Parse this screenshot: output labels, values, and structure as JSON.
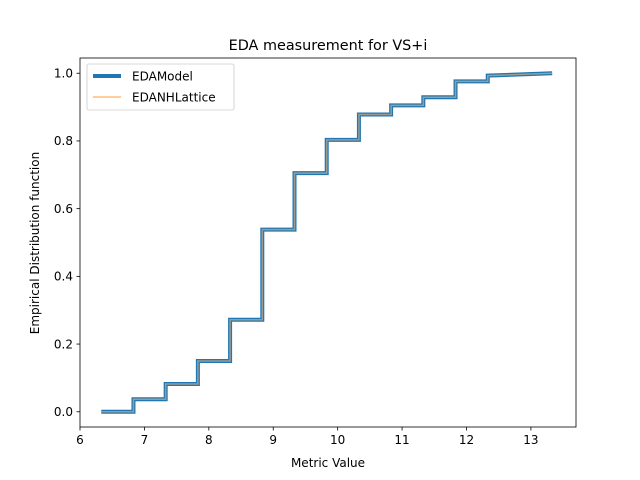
{
  "chart_data": {
    "type": "line",
    "title": "EDA measurement for VS+i",
    "xlabel": "Metric Value",
    "ylabel": "Empirical Distribution function",
    "xlim": [
      6.0,
      13.7
    ],
    "ylim": [
      -0.045,
      1.045
    ],
    "xticks": [
      6,
      7,
      8,
      9,
      10,
      11,
      12,
      13
    ],
    "yticks": [
      0.0,
      0.2,
      0.4,
      0.6,
      0.8,
      1.0
    ],
    "xtick_labels": [
      "6",
      "7",
      "8",
      "9",
      "10",
      "11",
      "12",
      "13"
    ],
    "ytick_labels": [
      "0.0",
      "0.2",
      "0.4",
      "0.6",
      "0.8",
      "1.0"
    ],
    "grid": false,
    "legend_position": "upper-left",
    "step": true,
    "series": [
      {
        "name": "EDAModel",
        "color": "#1f77b4",
        "x": [
          6.33,
          6.83,
          6.83,
          7.33,
          7.33,
          7.83,
          7.83,
          8.33,
          8.33,
          8.83,
          8.83,
          9.33,
          9.33,
          9.83,
          9.83,
          10.33,
          10.33,
          10.83,
          10.83,
          11.33,
          11.33,
          11.83,
          11.83,
          12.33,
          12.33,
          13.33
        ],
        "y": [
          0.0,
          0.0,
          0.037,
          0.037,
          0.082,
          0.082,
          0.15,
          0.15,
          0.272,
          0.272,
          0.538,
          0.538,
          0.705,
          0.705,
          0.803,
          0.803,
          0.878,
          0.878,
          0.905,
          0.905,
          0.929,
          0.929,
          0.976,
          0.976,
          0.993,
          1.0
        ]
      },
      {
        "name": "EDANHLattice",
        "color": "#ffbb78",
        "x": [
          6.33,
          6.83,
          6.83,
          7.33,
          7.33,
          7.83,
          7.83,
          8.33,
          8.33,
          8.83,
          8.83,
          9.33,
          9.33,
          9.83,
          9.83,
          10.33,
          10.33,
          10.83,
          10.83,
          11.33,
          11.33,
          11.83,
          11.83,
          12.33,
          12.33,
          13.33
        ],
        "y": [
          0.0,
          0.0,
          0.037,
          0.037,
          0.082,
          0.082,
          0.15,
          0.15,
          0.272,
          0.272,
          0.538,
          0.538,
          0.705,
          0.705,
          0.803,
          0.803,
          0.878,
          0.878,
          0.905,
          0.905,
          0.929,
          0.929,
          0.976,
          0.976,
          0.993,
          1.0
        ]
      }
    ]
  }
}
